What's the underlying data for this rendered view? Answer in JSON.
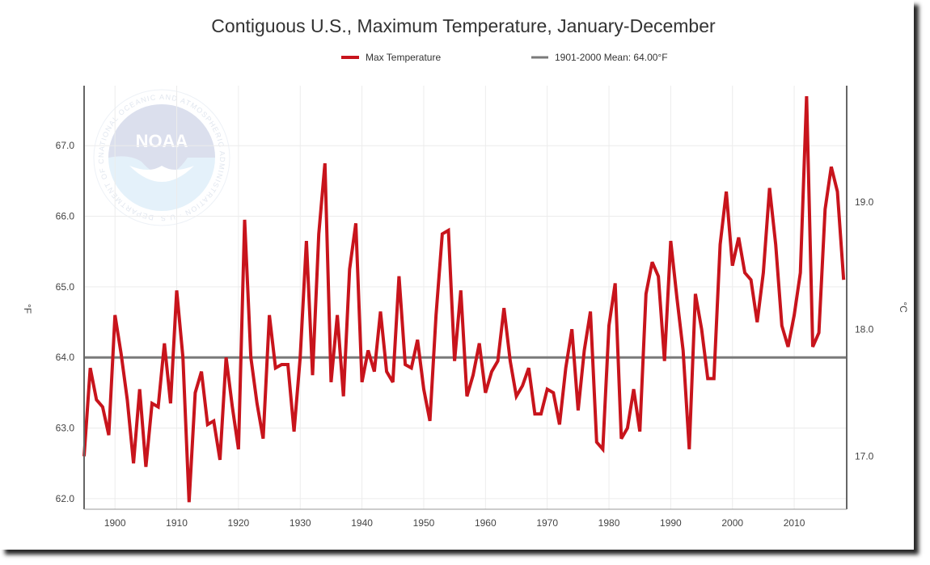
{
  "chart_data": {
    "type": "line",
    "title": "Contiguous U.S., Maximum Temperature, January-December",
    "ylabel_left": "°F",
    "ylabel_right": "°C",
    "ylim_f": [
      61.85,
      67.85
    ],
    "xlim": [
      1895,
      2018.5
    ],
    "x_ticks": [
      1900,
      1910,
      1920,
      1930,
      1940,
      1950,
      1960,
      1970,
      1980,
      1990,
      2000,
      2010
    ],
    "y_ticks_f": [
      62.0,
      63.0,
      64.0,
      65.0,
      66.0,
      67.0
    ],
    "y_ticks_c": [
      17.0,
      18.0,
      19.0
    ],
    "grid": true,
    "legend_position": "top-center",
    "series": [
      {
        "name": "Max Temperature",
        "color": "#c8141c",
        "x": [
          1895,
          1896,
          1897,
          1898,
          1899,
          1900,
          1901,
          1902,
          1903,
          1904,
          1905,
          1906,
          1907,
          1908,
          1909,
          1910,
          1911,
          1912,
          1913,
          1914,
          1915,
          1916,
          1917,
          1918,
          1919,
          1920,
          1921,
          1922,
          1923,
          1924,
          1925,
          1926,
          1927,
          1928,
          1929,
          1930,
          1931,
          1932,
          1933,
          1934,
          1935,
          1936,
          1937,
          1938,
          1939,
          1940,
          1941,
          1942,
          1943,
          1944,
          1945,
          1946,
          1947,
          1948,
          1949,
          1950,
          1951,
          1952,
          1953,
          1954,
          1955,
          1956,
          1957,
          1958,
          1959,
          1960,
          1961,
          1962,
          1963,
          1964,
          1965,
          1966,
          1967,
          1968,
          1969,
          1970,
          1971,
          1972,
          1973,
          1974,
          1975,
          1976,
          1977,
          1978,
          1979,
          1980,
          1981,
          1982,
          1983,
          1984,
          1985,
          1986,
          1987,
          1988,
          1989,
          1990,
          1991,
          1992,
          1993,
          1994,
          1995,
          1996,
          1997,
          1998,
          1999,
          2000,
          2001,
          2002,
          2003,
          2004,
          2005,
          2006,
          2007,
          2008,
          2009,
          2010,
          2011,
          2012,
          2013,
          2014,
          2015,
          2016,
          2017,
          2018
        ],
        "values": [
          62.6,
          63.85,
          63.4,
          63.3,
          62.9,
          64.6,
          64.05,
          63.4,
          62.5,
          63.55,
          62.45,
          63.35,
          63.3,
          64.2,
          63.35,
          64.95,
          64.0,
          61.95,
          63.5,
          63.8,
          63.05,
          63.1,
          62.55,
          64.0,
          63.3,
          62.7,
          65.95,
          64.0,
          63.35,
          62.85,
          64.6,
          63.85,
          63.9,
          63.9,
          62.95,
          64.0,
          65.65,
          63.75,
          65.75,
          66.75,
          63.65,
          64.6,
          63.45,
          65.25,
          65.9,
          63.65,
          64.1,
          63.8,
          64.65,
          63.8,
          63.65,
          65.15,
          63.9,
          63.85,
          64.25,
          63.55,
          63.1,
          64.6,
          65.75,
          65.8,
          63.95,
          64.95,
          63.45,
          63.75,
          64.2,
          63.5,
          63.8,
          63.95,
          64.7,
          63.95,
          63.45,
          63.6,
          63.85,
          63.2,
          63.2,
          63.55,
          63.5,
          63.05,
          63.85,
          64.4,
          63.25,
          64.1,
          64.65,
          62.8,
          62.7,
          64.45,
          65.05,
          62.85,
          63.0,
          63.55,
          62.95,
          64.9,
          65.35,
          65.15,
          63.95,
          65.65,
          64.85,
          64.1,
          62.7,
          64.9,
          64.4,
          63.7,
          63.7,
          65.6,
          66.35,
          65.3,
          65.7,
          65.2,
          65.1,
          64.5,
          65.2,
          66.4,
          65.6,
          64.45,
          64.15,
          64.6,
          65.2,
          67.7,
          64.15,
          64.35,
          66.1,
          66.7,
          66.35,
          65.1
        ]
      },
      {
        "name": "1901-2000 Mean: 64.00°F",
        "color": "#7a7a7a",
        "value": 64.0
      }
    ]
  },
  "watermark": {
    "logo_text": "NOAA",
    "ring_text": "NATIONAL OCEANIC AND ATMOSPHERIC ADMINISTRATION · U.S. DEPARTMENT OF COMMERCE"
  }
}
